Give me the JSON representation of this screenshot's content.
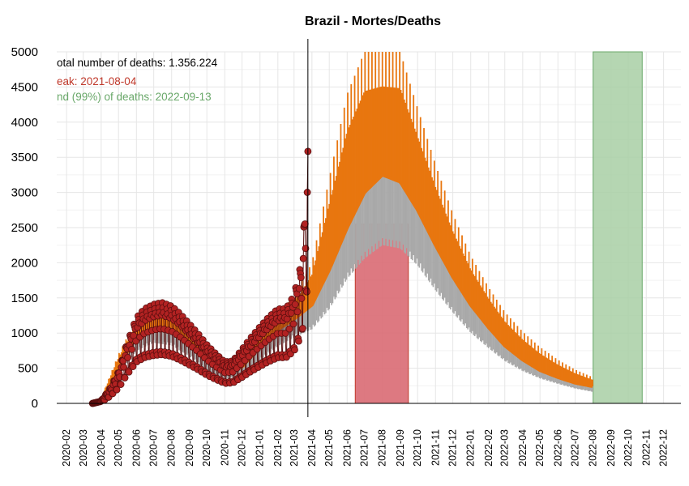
{
  "chart_data": {
    "type": "line",
    "title": "Brazil - Mortes/Deaths",
    "xlabel": "",
    "ylabel": "",
    "ylim": [
      0,
      5000
    ],
    "yticks": [
      "0",
      "500",
      "1000",
      "1500",
      "2000",
      "2500",
      "3000",
      "3500",
      "4000",
      "4500",
      "5000"
    ],
    "xlim": [
      "2020-01-15",
      "2022-12-31"
    ],
    "xticks": [
      "2020-02",
      "2020-03",
      "2020-04",
      "2020-05",
      "2020-06",
      "2020-07",
      "2020-08",
      "2020-09",
      "2020-10",
      "2020-11",
      "2020-12",
      "2021-01",
      "2021-02",
      "2021-03",
      "2021-04",
      "2021-05",
      "2021-06",
      "2021-07",
      "2021-08",
      "2021-09",
      "2021-10",
      "2021-11",
      "2021-12",
      "2022-01",
      "2022-02",
      "2022-03",
      "2022-04",
      "2022-05",
      "2022-06",
      "2022-07",
      "2022-08",
      "2022-09",
      "2022-10",
      "2022-11",
      "2022-12"
    ],
    "grid": true,
    "annotations": [
      {
        "text": "otal number of deaths: 1.356.224",
        "color": "#000000"
      },
      {
        "text": "eak: 2021-08-04",
        "color": "#c0392b"
      },
      {
        "text": "nd (99%) of deaths: 2022-09-13",
        "color": "#6aa86a"
      }
    ],
    "vline_date": "2021-03-25",
    "peak_band": {
      "start": "2021-06-15",
      "end": "2021-09-15",
      "top": 2550,
      "color": "#d96a73"
    },
    "end_band": {
      "start": "2022-08-01",
      "end": "2022-10-25",
      "top": 5000,
      "color": "#a8cfa5"
    },
    "observed_deaths": {
      "color": "#b22222",
      "start": "2020-03-17",
      "end": "2021-03-25",
      "points": [
        [
          "2020-03-17",
          0
        ],
        [
          "2020-04-01",
          30
        ],
        [
          "2020-04-15",
          150
        ],
        [
          "2020-05-01",
          350
        ],
        [
          "2020-05-15",
          650
        ],
        [
          "2020-06-01",
          950
        ],
        [
          "2020-06-15",
          1050
        ],
        [
          "2020-07-01",
          1100
        ],
        [
          "2020-07-15",
          1120
        ],
        [
          "2020-08-01",
          1080
        ],
        [
          "2020-08-15",
          1000
        ],
        [
          "2020-09-01",
          880
        ],
        [
          "2020-09-15",
          780
        ],
        [
          "2020-10-01",
          650
        ],
        [
          "2020-10-15",
          560
        ],
        [
          "2020-11-01",
          460
        ],
        [
          "2020-11-15",
          470
        ],
        [
          "2020-12-01",
          600
        ],
        [
          "2020-12-15",
          720
        ],
        [
          "2021-01-01",
          850
        ],
        [
          "2021-01-15",
          950
        ],
        [
          "2021-02-01",
          1050
        ],
        [
          "2021-02-15",
          1050
        ],
        [
          "2021-03-01",
          1200
        ],
        [
          "2021-03-15",
          1600
        ],
        [
          "2021-03-25",
          2800
        ]
      ]
    },
    "model_median": {
      "color": "#e8760f",
      "points": [
        [
          "2020-03-15",
          0
        ],
        [
          "2020-04-01",
          50
        ],
        [
          "2020-05-01",
          520
        ],
        [
          "2020-06-01",
          950
        ],
        [
          "2020-07-01",
          1100
        ],
        [
          "2020-08-01",
          1050
        ],
        [
          "2020-09-01",
          850
        ],
        [
          "2020-10-01",
          600
        ],
        [
          "2020-11-01",
          450
        ],
        [
          "2020-12-01",
          520
        ],
        [
          "2021-01-01",
          800
        ],
        [
          "2021-02-01",
          1050
        ],
        [
          "2021-03-01",
          1200
        ],
        [
          "2021-04-01",
          1400
        ],
        [
          "2021-05-01",
          1900
        ],
        [
          "2021-06-01",
          2500
        ],
        [
          "2021-07-01",
          3000
        ],
        [
          "2021-08-01",
          3250
        ],
        [
          "2021-09-01",
          3150
        ],
        [
          "2021-10-01",
          2750
        ],
        [
          "2021-11-01",
          2250
        ],
        [
          "2021-12-01",
          1800
        ],
        [
          "2022-01-01",
          1400
        ],
        [
          "2022-02-01",
          1080
        ],
        [
          "2022-03-01",
          820
        ],
        [
          "2022-04-01",
          620
        ],
        [
          "2022-05-01",
          470
        ],
        [
          "2022-06-01",
          370
        ],
        [
          "2022-07-01",
          290
        ],
        [
          "2022-08-01",
          240
        ]
      ]
    },
    "model_upper": {
      "color": "#e8760f",
      "points": [
        [
          "2020-03-15",
          0
        ],
        [
          "2020-04-01",
          80
        ],
        [
          "2020-05-01",
          700
        ],
        [
          "2020-06-01",
          1200
        ],
        [
          "2020-07-01",
          1350
        ],
        [
          "2020-08-01",
          1300
        ],
        [
          "2020-09-01",
          1080
        ],
        [
          "2020-10-01",
          800
        ],
        [
          "2020-11-01",
          600
        ],
        [
          "2020-12-01",
          720
        ],
        [
          "2021-01-01",
          1050
        ],
        [
          "2021-02-01",
          1320
        ],
        [
          "2021-03-01",
          1500
        ],
        [
          "2021-04-01",
          2000
        ],
        [
          "2021-05-01",
          3200
        ],
        [
          "2021-06-01",
          4400
        ],
        [
          "2021-07-01",
          5000
        ],
        [
          "2021-08-01",
          5000
        ],
        [
          "2021-09-01",
          5000
        ],
        [
          "2021-10-01",
          4200
        ],
        [
          "2021-11-01",
          3400
        ],
        [
          "2021-12-01",
          2700
        ],
        [
          "2022-01-01",
          2100
        ],
        [
          "2022-02-01",
          1650
        ],
        [
          "2022-03-01",
          1300
        ],
        [
          "2022-04-01",
          1020
        ],
        [
          "2022-05-01",
          800
        ],
        [
          "2022-06-01",
          620
        ],
        [
          "2022-07-01",
          480
        ],
        [
          "2022-08-01",
          370
        ]
      ]
    },
    "model_lower": {
      "color": "#a9a9a9",
      "points": [
        [
          "2020-03-15",
          0
        ],
        [
          "2020-04-01",
          20
        ],
        [
          "2020-05-01",
          420
        ],
        [
          "2020-06-01",
          780
        ],
        [
          "2020-07-01",
          900
        ],
        [
          "2020-08-01",
          860
        ],
        [
          "2020-09-01",
          700
        ],
        [
          "2020-10-01",
          480
        ],
        [
          "2020-11-01",
          360
        ],
        [
          "2020-12-01",
          420
        ],
        [
          "2021-01-01",
          640
        ],
        [
          "2021-02-01",
          850
        ],
        [
          "2021-03-01",
          980
        ],
        [
          "2021-04-01",
          1100
        ],
        [
          "2021-05-01",
          1400
        ],
        [
          "2021-06-01",
          1850
        ],
        [
          "2021-07-01",
          2150
        ],
        [
          "2021-08-01",
          2350
        ],
        [
          "2021-09-01",
          2300
        ],
        [
          "2021-10-01",
          2050
        ],
        [
          "2021-11-01",
          1680
        ],
        [
          "2021-12-01",
          1350
        ],
        [
          "2022-01-01",
          1050
        ],
        [
          "2022-02-01",
          820
        ],
        [
          "2022-03-01",
          630
        ],
        [
          "2022-04-01",
          480
        ],
        [
          "2022-05-01",
          370
        ],
        [
          "2022-06-01",
          290
        ],
        [
          "2022-07-01",
          220
        ],
        [
          "2022-08-01",
          170
        ]
      ]
    }
  }
}
